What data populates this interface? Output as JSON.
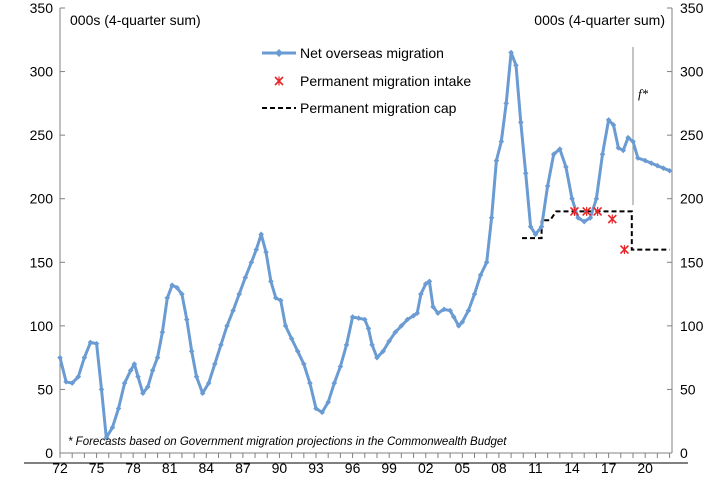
{
  "chart_data": {
    "type": "line",
    "left_unit_label": "000s (4-quarter sum)",
    "right_unit_label": "000s (4-quarter sum)",
    "ylim": [
      0,
      350
    ],
    "yticks": [
      "0",
      "50",
      "100",
      "150",
      "200",
      "250",
      "300",
      "350"
    ],
    "xlim": [
      1972,
      2022.2
    ],
    "xticks": [
      "72",
      "75",
      "78",
      "81",
      "84",
      "87",
      "90",
      "93",
      "96",
      "99",
      "02",
      "05",
      "08",
      "11",
      "14",
      "17",
      "20"
    ],
    "forecast_marker_x": 2019.0,
    "forecast_label": "f*",
    "footnote": "* Forecasts based on Government migration projections in the Commonwealth Budget",
    "colors": {
      "net_overseas": "#6a9bd3",
      "intake": "#e8262a",
      "cap": "#000000",
      "axis": "#808080"
    },
    "series": [
      {
        "name": "Net overseas migration",
        "style": "line-diamond",
        "points": [
          [
            1972.0,
            75
          ],
          [
            1972.5,
            56
          ],
          [
            1973.0,
            55
          ],
          [
            1973.5,
            60
          ],
          [
            1974.0,
            75
          ],
          [
            1974.5,
            87
          ],
          [
            1975.0,
            86
          ],
          [
            1975.4,
            50
          ],
          [
            1975.8,
            12
          ],
          [
            1976.3,
            20
          ],
          [
            1976.8,
            35
          ],
          [
            1977.3,
            55
          ],
          [
            1977.8,
            65
          ],
          [
            1978.1,
            70
          ],
          [
            1978.4,
            60
          ],
          [
            1978.8,
            47
          ],
          [
            1979.2,
            52
          ],
          [
            1979.6,
            65
          ],
          [
            1980.0,
            75
          ],
          [
            1980.4,
            95
          ],
          [
            1980.8,
            122
          ],
          [
            1981.2,
            132
          ],
          [
            1981.6,
            130
          ],
          [
            1982.0,
            125
          ],
          [
            1982.4,
            105
          ],
          [
            1982.8,
            80
          ],
          [
            1983.2,
            60
          ],
          [
            1983.7,
            47
          ],
          [
            1984.2,
            55
          ],
          [
            1984.7,
            70
          ],
          [
            1985.2,
            85
          ],
          [
            1985.7,
            100
          ],
          [
            1986.2,
            112
          ],
          [
            1986.7,
            125
          ],
          [
            1987.2,
            138
          ],
          [
            1987.7,
            150
          ],
          [
            1988.1,
            160
          ],
          [
            1988.5,
            172
          ],
          [
            1988.9,
            158
          ],
          [
            1989.3,
            135
          ],
          [
            1989.7,
            122
          ],
          [
            1990.1,
            120
          ],
          [
            1990.5,
            100
          ],
          [
            1991.0,
            90
          ],
          [
            1991.5,
            80
          ],
          [
            1992.0,
            70
          ],
          [
            1992.5,
            55
          ],
          [
            1993.0,
            35
          ],
          [
            1993.5,
            32
          ],
          [
            1994.0,
            40
          ],
          [
            1994.5,
            55
          ],
          [
            1995.0,
            68
          ],
          [
            1995.5,
            85
          ],
          [
            1996.0,
            107
          ],
          [
            1996.5,
            106
          ],
          [
            1997.0,
            105
          ],
          [
            1997.3,
            98
          ],
          [
            1997.6,
            85
          ],
          [
            1998.0,
            75
          ],
          [
            1998.5,
            80
          ],
          [
            1999.0,
            88
          ],
          [
            1999.5,
            95
          ],
          [
            2000.0,
            100
          ],
          [
            2000.5,
            105
          ],
          [
            2001.0,
            108
          ],
          [
            2001.3,
            110
          ],
          [
            2001.6,
            125
          ],
          [
            2002.0,
            133
          ],
          [
            2002.3,
            135
          ],
          [
            2002.6,
            115
          ],
          [
            2003.0,
            110
          ],
          [
            2003.5,
            113
          ],
          [
            2004.0,
            112
          ],
          [
            2004.3,
            107
          ],
          [
            2004.7,
            100
          ],
          [
            2005.0,
            103
          ],
          [
            2005.5,
            112
          ],
          [
            2006.0,
            125
          ],
          [
            2006.5,
            140
          ],
          [
            2007.0,
            150
          ],
          [
            2007.4,
            185
          ],
          [
            2007.8,
            230
          ],
          [
            2008.2,
            245
          ],
          [
            2008.6,
            275
          ],
          [
            2009.0,
            315
          ],
          [
            2009.4,
            305
          ],
          [
            2009.8,
            260
          ],
          [
            2010.2,
            220
          ],
          [
            2010.6,
            178
          ],
          [
            2011.0,
            172
          ],
          [
            2011.5,
            178
          ],
          [
            2012.0,
            210
          ],
          [
            2012.5,
            235
          ],
          [
            2013.0,
            239
          ],
          [
            2013.5,
            225
          ],
          [
            2014.0,
            200
          ],
          [
            2014.5,
            185
          ],
          [
            2015.0,
            182
          ],
          [
            2015.5,
            185
          ],
          [
            2016.0,
            200
          ],
          [
            2016.5,
            235
          ],
          [
            2017.0,
            262
          ],
          [
            2017.4,
            258
          ],
          [
            2017.8,
            240
          ],
          [
            2018.2,
            238
          ],
          [
            2018.6,
            248
          ],
          [
            2019.0,
            245
          ],
          [
            2019.4,
            232
          ],
          [
            2020.0,
            230
          ],
          [
            2020.5,
            228
          ],
          [
            2021.0,
            226
          ],
          [
            2021.5,
            224
          ],
          [
            2022.0,
            222
          ]
        ]
      },
      {
        "name": "Permanent migration intake",
        "style": "cross",
        "points": [
          [
            2014.2,
            190
          ],
          [
            2015.2,
            190
          ],
          [
            2016.1,
            190
          ],
          [
            2017.3,
            184
          ],
          [
            2018.3,
            160
          ]
        ]
      },
      {
        "name": "Permanent migration cap",
        "style": "dashed",
        "points": [
          [
            2009.9,
            169
          ],
          [
            2011.5,
            169
          ],
          [
            2011.5,
            183
          ],
          [
            2012.2,
            183
          ],
          [
            2012.7,
            190
          ],
          [
            2018.9,
            190
          ],
          [
            2018.9,
            160
          ],
          [
            2022.0,
            160
          ]
        ]
      }
    ]
  }
}
